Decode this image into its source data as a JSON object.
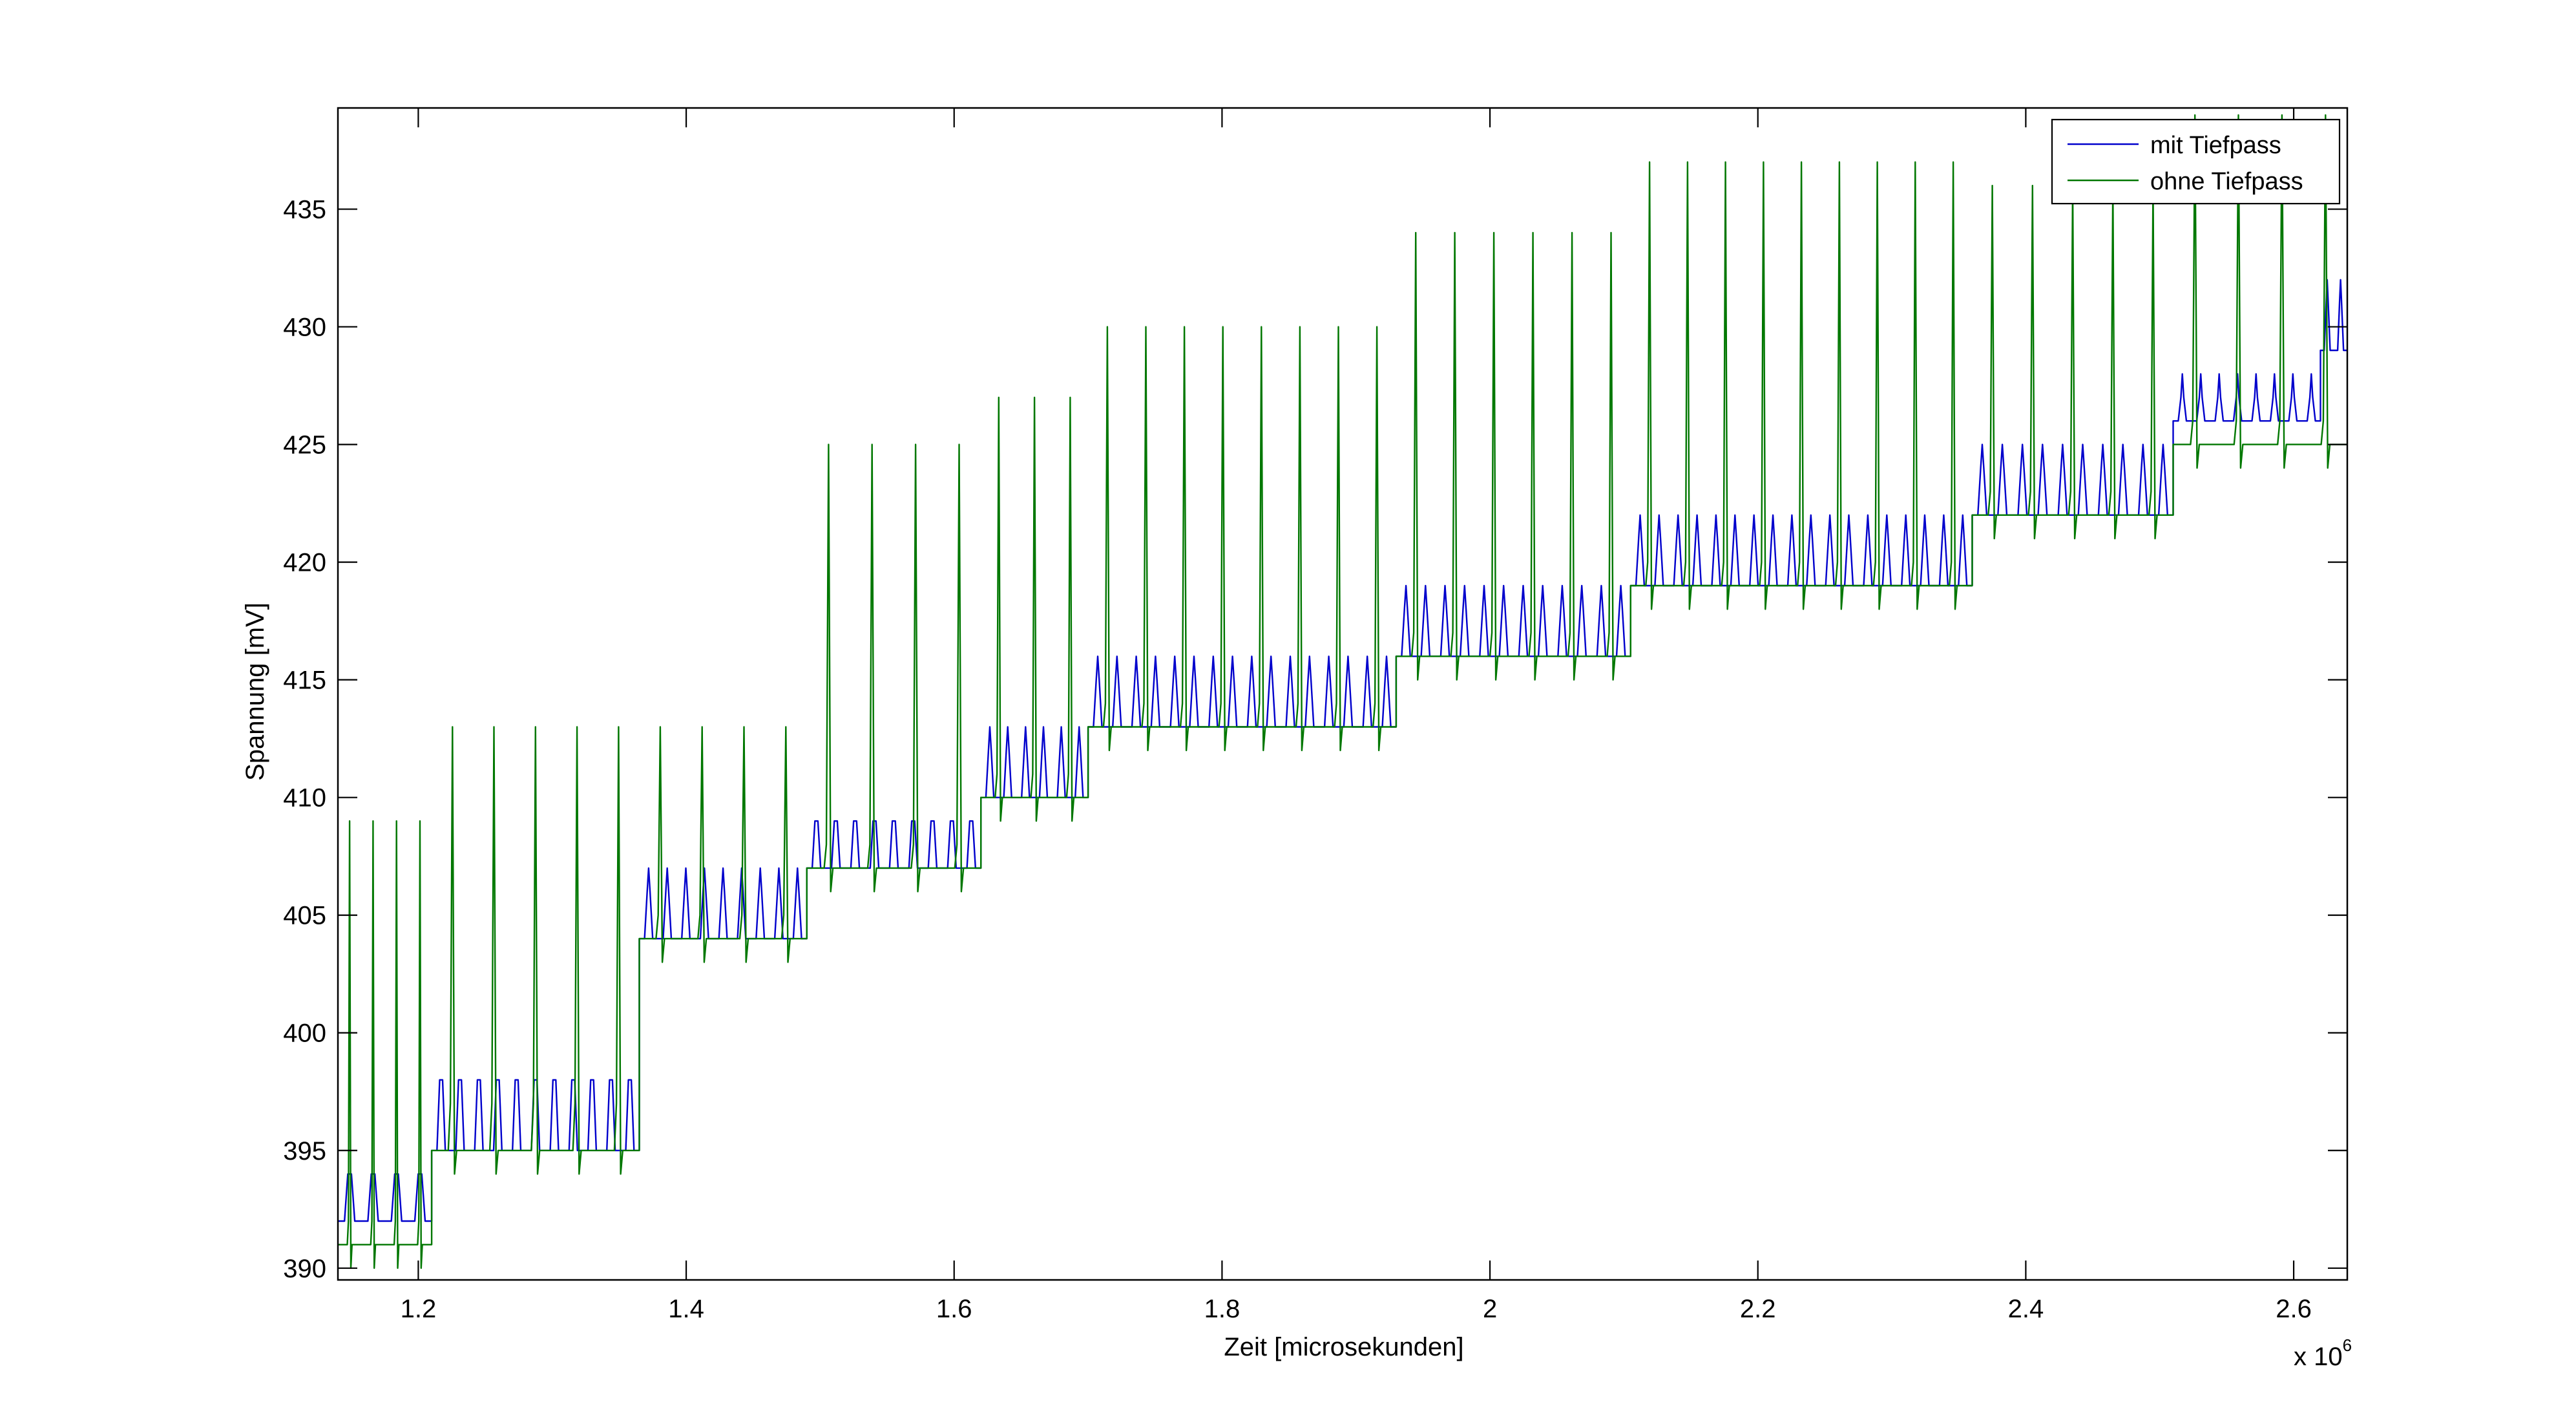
{
  "chart_data": {
    "type": "line",
    "title": "",
    "xlabel": "Zeit [microsekunden]",
    "ylabel": "Spannung [mV]",
    "x_exponent_label": "x 10",
    "x_exponent_power": "6",
    "xlim": [
      1.14,
      2.64
    ],
    "ylim": [
      389.5,
      439.3
    ],
    "xticks": [
      1.2,
      1.4,
      1.6,
      1.8,
      2.0,
      2.2,
      2.4,
      2.6
    ],
    "xtick_labels": [
      "1.2",
      "1.4",
      "1.6",
      "1.8",
      "2",
      "2.2",
      "2.4",
      "2.6"
    ],
    "yticks": [
      390,
      395,
      400,
      405,
      410,
      415,
      420,
      425,
      430,
      435
    ],
    "ytick_labels": [
      "390",
      "395",
      "400",
      "405",
      "410",
      "415",
      "420",
      "425",
      "430",
      "435"
    ],
    "grid": false,
    "legend_position": "top-right",
    "series": [
      {
        "name": "mit Tiefpass",
        "color": "#0000cc",
        "segments": [
          {
            "start": 1.14,
            "end": 1.21,
            "base": 392,
            "bump": 394,
            "spike": 394,
            "period": 0.0175
          },
          {
            "start": 1.21,
            "end": 1.365,
            "base": 395,
            "bump": 398,
            "spike": 398,
            "period": 0.0145
          },
          {
            "start": 1.365,
            "end": 1.49,
            "base": 404,
            "bump": 406,
            "spike": 407,
            "period": 0.0145
          },
          {
            "start": 1.49,
            "end": 1.62,
            "base": 407,
            "bump": 409,
            "spike": 409,
            "period": 0.0145
          },
          {
            "start": 1.62,
            "end": 1.7,
            "base": 410,
            "bump": 412,
            "spike": 413,
            "period": 0.0145
          },
          {
            "start": 1.7,
            "end": 1.93,
            "base": 413,
            "bump": 415,
            "spike": 416,
            "period": 0.0145
          },
          {
            "start": 1.93,
            "end": 2.105,
            "base": 416,
            "bump": 418,
            "spike": 419,
            "period": 0.0145
          },
          {
            "start": 2.105,
            "end": 2.36,
            "base": 419,
            "bump": 421,
            "spike": 422,
            "period": 0.0145
          },
          {
            "start": 2.36,
            "end": 2.51,
            "base": 422,
            "bump": 424,
            "spike": 425,
            "period": 0.0145
          },
          {
            "start": 2.51,
            "end": 2.62,
            "base": 426,
            "bump": 427,
            "spike": 428,
            "period": 0.0145
          },
          {
            "start": 2.62,
            "end": 2.64,
            "base": 429,
            "bump": 431,
            "spike": 432,
            "period": 0.01
          }
        ]
      },
      {
        "name": "ohne Tiefpass",
        "color": "#007700",
        "segments": [
          {
            "start": 1.14,
            "end": 1.21,
            "base": 391,
            "bump": 392,
            "spike": 409,
            "period": 0.0175
          },
          {
            "start": 1.21,
            "end": 1.365,
            "base": 395,
            "bump": 397,
            "spike": 413,
            "period": 0.029
          },
          {
            "start": 1.365,
            "end": 1.49,
            "base": 404,
            "bump": 405,
            "spike": 413,
            "period": 0.029
          },
          {
            "start": 1.49,
            "end": 1.62,
            "base": 407,
            "bump": 408,
            "spike": 425,
            "period": 0.029
          },
          {
            "start": 1.62,
            "end": 1.7,
            "base": 410,
            "bump": 411,
            "spike": 427,
            "period": 0.029
          },
          {
            "start": 1.7,
            "end": 1.93,
            "base": 413,
            "bump": 414,
            "spike": 430,
            "period": 0.029
          },
          {
            "start": 1.93,
            "end": 2.105,
            "base": 416,
            "bump": 417,
            "spike": 434,
            "period": 0.029
          },
          {
            "start": 2.105,
            "end": 2.36,
            "base": 419,
            "bump": 420,
            "spike": 437,
            "period": 0.029
          },
          {
            "start": 2.36,
            "end": 2.51,
            "base": 422,
            "bump": 423,
            "spike": 436,
            "period": 0.029
          },
          {
            "start": 2.51,
            "end": 2.64,
            "base": 425,
            "bump": 426,
            "spike": 439,
            "period": 0.029
          }
        ]
      }
    ]
  }
}
